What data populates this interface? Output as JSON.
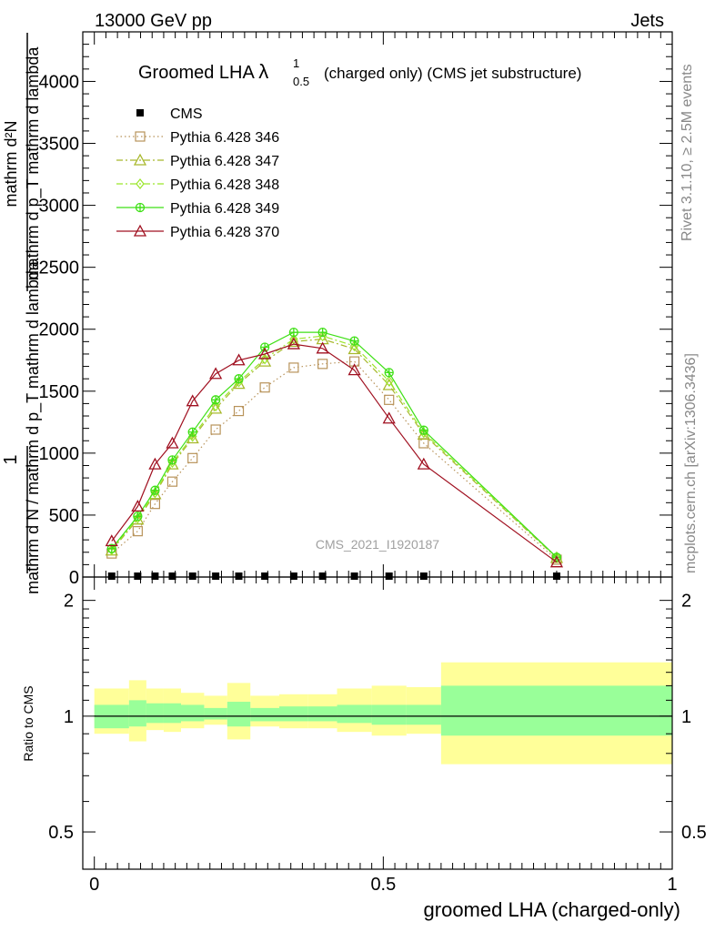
{
  "header": {
    "left": "13000 GeV pp",
    "right": "Jets"
  },
  "side": {
    "rivet": "Rivet 3.1.10, ≥ 2.5M events",
    "mcplots": "mcplots.cern.ch [arXiv:1306.3436]"
  },
  "plot_title": {
    "main": "Groomed LHA ",
    "lambda": "λ",
    "sup": "1",
    "sub": "0.5",
    "tail": "(charged only) (CMS jet substructure)"
  },
  "watermark": "CMS_2021_I1920187",
  "xlabel": "groomed LHA (charged-only)",
  "ylabel_main": {
    "numerator": "mathrm d²N",
    "denominator": "mathrm d p_T mathrm d lambda",
    "one": "1",
    "norm": "mathrm d N / mathrm d p_T mathrm d lambda"
  },
  "ylabel_ratio": "Ratio to CMS",
  "colors": {
    "cms": "#000000",
    "p346": "#b8935a",
    "p347": "#a8b82c",
    "p348": "#9ae62a",
    "p349": "#3fe016",
    "p370": "#a01020",
    "band_outer": "#ffff99",
    "band_inner": "#99ff99"
  },
  "chart_data": [
    {
      "type": "line",
      "ylim": [
        0,
        4400
      ],
      "xlim": [
        -0.02,
        1.0
      ],
      "yticks": [
        0,
        500,
        1000,
        1500,
        2000,
        2500,
        3000,
        3500,
        4000
      ],
      "ytick_labels": [
        "0",
        "500",
        "1000",
        "1500",
        "2000",
        "2500",
        "3000",
        "3500",
        "4000"
      ],
      "legend_position": "top-left",
      "x": [
        0.03,
        0.075,
        0.105,
        0.135,
        0.17,
        0.21,
        0.25,
        0.295,
        0.345,
        0.395,
        0.45,
        0.51,
        0.57,
        0.8
      ],
      "series": [
        {
          "name": "CMS",
          "key": "cms",
          "marker": "square-filled",
          "style": "none",
          "values": [
            0,
            0,
            0,
            0,
            0,
            0,
            0,
            0,
            0,
            0,
            0,
            0,
            0,
            0
          ]
        },
        {
          "name": "Pythia 6.428 346",
          "key": "p346",
          "marker": "square-open",
          "style": "dotted",
          "values": [
            190,
            370,
            590,
            770,
            960,
            1190,
            1340,
            1530,
            1690,
            1720,
            1740,
            1430,
            1080,
            140
          ]
        },
        {
          "name": "Pythia 6.428 347",
          "key": "p347",
          "marker": "triangle-open",
          "style": "dashdot",
          "values": [
            215,
            465,
            670,
            910,
            1120,
            1360,
            1560,
            1740,
            1900,
            1920,
            1840,
            1550,
            1150,
            155
          ]
        },
        {
          "name": "Pythia 6.428 348",
          "key": "p348",
          "marker": "diamond-open",
          "style": "dashdot",
          "values": [
            220,
            475,
            680,
            925,
            1135,
            1380,
            1575,
            1760,
            1920,
            1945,
            1865,
            1580,
            1165,
            158
          ]
        },
        {
          "name": "Pythia 6.428 349",
          "key": "p349",
          "marker": "cross-circle",
          "style": "solid",
          "values": [
            230,
            490,
            700,
            945,
            1170,
            1430,
            1600,
            1855,
            1975,
            1975,
            1905,
            1650,
            1185,
            160
          ]
        },
        {
          "name": "Pythia 6.428 370",
          "key": "p370",
          "marker": "triangle-open",
          "style": "solid",
          "values": [
            290,
            570,
            910,
            1080,
            1420,
            1640,
            1750,
            1800,
            1880,
            1845,
            1670,
            1280,
            910,
            120
          ]
        }
      ]
    },
    {
      "type": "area",
      "ylim": [
        0.4,
        2.3
      ],
      "ytick_labels": [
        "0.5",
        "1",
        "2"
      ],
      "yticks": [
        0.5,
        1,
        2
      ],
      "xtick_labels": [
        "0",
        "0.5",
        "1"
      ],
      "xticks": [
        0,
        0.5,
        1
      ],
      "reference_line": 1,
      "bins": [
        {
          "x0": 0.0,
          "x1": 0.06,
          "inner": [
            0.93,
            1.07
          ],
          "outer": [
            0.9,
            1.18
          ]
        },
        {
          "x0": 0.06,
          "x1": 0.09,
          "inner": [
            0.94,
            1.1
          ],
          "outer": [
            0.86,
            1.24
          ]
        },
        {
          "x0": 0.09,
          "x1": 0.12,
          "inner": [
            0.96,
            1.08
          ],
          "outer": [
            0.92,
            1.18
          ]
        },
        {
          "x0": 0.12,
          "x1": 0.15,
          "inner": [
            0.96,
            1.08
          ],
          "outer": [
            0.91,
            1.18
          ]
        },
        {
          "x0": 0.15,
          "x1": 0.19,
          "inner": [
            0.97,
            1.07
          ],
          "outer": [
            0.93,
            1.15
          ]
        },
        {
          "x0": 0.19,
          "x1": 0.23,
          "inner": [
            0.98,
            1.05
          ],
          "outer": [
            0.95,
            1.13
          ]
        },
        {
          "x0": 0.23,
          "x1": 0.27,
          "inner": [
            0.94,
            1.09
          ],
          "outer": [
            0.87,
            1.22
          ]
        },
        {
          "x0": 0.27,
          "x1": 0.32,
          "inner": [
            0.97,
            1.05
          ],
          "outer": [
            0.94,
            1.13
          ]
        },
        {
          "x0": 0.32,
          "x1": 0.37,
          "inner": [
            0.97,
            1.06
          ],
          "outer": [
            0.93,
            1.14
          ]
        },
        {
          "x0": 0.37,
          "x1": 0.42,
          "inner": [
            0.97,
            1.06
          ],
          "outer": [
            0.93,
            1.14
          ]
        },
        {
          "x0": 0.42,
          "x1": 0.48,
          "inner": [
            0.96,
            1.07
          ],
          "outer": [
            0.91,
            1.18
          ]
        },
        {
          "x0": 0.48,
          "x1": 0.54,
          "inner": [
            0.95,
            1.07
          ],
          "outer": [
            0.89,
            1.2
          ]
        },
        {
          "x0": 0.54,
          "x1": 0.6,
          "inner": [
            0.95,
            1.07
          ],
          "outer": [
            0.9,
            1.19
          ]
        },
        {
          "x0": 0.6,
          "x1": 1.0,
          "inner": [
            0.89,
            1.2
          ],
          "outer": [
            0.75,
            1.38
          ]
        }
      ]
    }
  ]
}
